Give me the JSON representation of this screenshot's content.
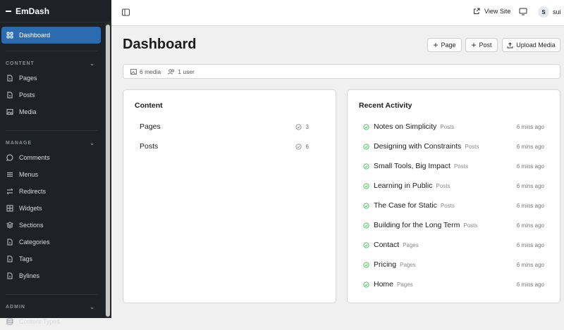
{
  "sidebar": {
    "brand": "EmDash",
    "dashboard": "Dashboard",
    "sections": [
      {
        "title": "CONTENT",
        "items": [
          "Pages",
          "Posts",
          "Media"
        ]
      },
      {
        "title": "MANAGE",
        "items": [
          "Comments",
          "Menus",
          "Redirects",
          "Widgets",
          "Sections",
          "Categories",
          "Tags",
          "Bylines"
        ]
      },
      {
        "title": "ADMIN",
        "items": [
          "Content Types"
        ]
      }
    ]
  },
  "header": {
    "view_site": "View Site",
    "avatar_initial": "S",
    "username": "sui"
  },
  "page": {
    "title": "Dashboard",
    "buttons": {
      "page": "Page",
      "post": "Post",
      "upload": "Upload Media"
    }
  },
  "stats": {
    "media": "6 media",
    "users": "1 user"
  },
  "content_card": {
    "title": "Content",
    "rows": [
      {
        "label": "Pages",
        "count": "3"
      },
      {
        "label": "Posts",
        "count": "6"
      }
    ]
  },
  "activity": {
    "title": "Recent Activity",
    "status_color": "#3fb950",
    "items": [
      {
        "title": "Notes on Simplicity",
        "type": "Posts",
        "time": "6 mins ago"
      },
      {
        "title": "Designing with Constraints",
        "type": "Posts",
        "time": "6 mins ago"
      },
      {
        "title": "Small Tools, Big Impact",
        "type": "Posts",
        "time": "6 mins ago"
      },
      {
        "title": "Learning in Public",
        "type": "Posts",
        "time": "6 mins ago"
      },
      {
        "title": "The Case for Static",
        "type": "Posts",
        "time": "6 mins ago"
      },
      {
        "title": "Building for the Long Term",
        "type": "Posts",
        "time": "6 mins ago"
      },
      {
        "title": "Contact",
        "type": "Pages",
        "time": "6 mins ago"
      },
      {
        "title": "Pricing",
        "type": "Pages",
        "time": "6 mins ago"
      },
      {
        "title": "Home",
        "type": "Pages",
        "time": "6 mins ago"
      }
    ]
  }
}
